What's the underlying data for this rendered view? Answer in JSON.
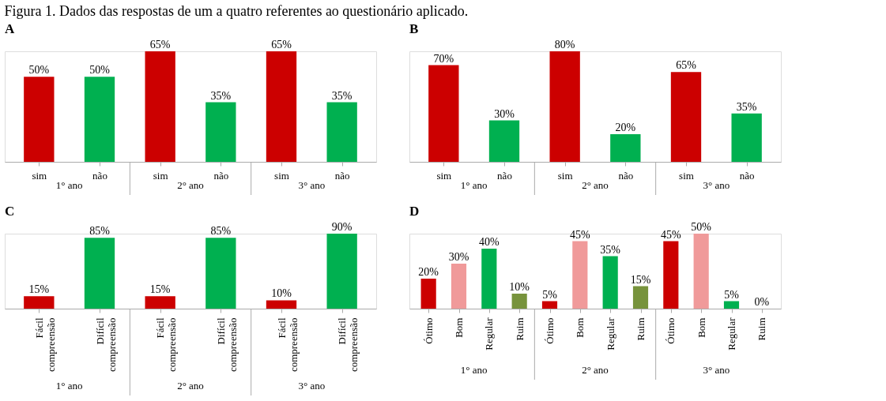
{
  "chart_data": [
    {
      "type": "bar",
      "title": "A",
      "categories": [
        "sim",
        "não",
        "sim",
        "não",
        "sim",
        "não"
      ],
      "values": [
        50,
        50,
        65,
        35,
        65,
        35
      ],
      "value_labels": [
        "50%",
        "50%",
        "65%",
        "35%",
        "65%",
        "35%"
      ],
      "colors": [
        "#cc0000",
        "#00b050",
        "#cc0000",
        "#00b050",
        "#cc0000",
        "#00b050"
      ],
      "annotations": [
        "Figura 1. Dados das respostas de um a quatro referentes ao questionário aplicado.",
        "1° ano",
        "2° ano",
        "3° ano"
      ]
    },
    {
      "type": "bar",
      "title": "B",
      "categories": [
        "sim",
        "não",
        "sim",
        "não",
        "sim",
        "não"
      ],
      "values": [
        70,
        30,
        80,
        20,
        65,
        35
      ],
      "value_labels": [
        "70%",
        "30%",
        "80%",
        "20%",
        "65%",
        "35%"
      ],
      "colors": [
        "#cc0000",
        "#00b050",
        "#cc0000",
        "#00b050",
        "#cc0000",
        "#00b050"
      ],
      "annotations": [
        "1° ano",
        "2° ano",
        "3° ano"
      ]
    },
    {
      "type": "bar",
      "title": "C",
      "categories": [
        "Fácil compreensão",
        "Difícil compreensão",
        "Fácil compreensão",
        "Difícil compreensão",
        "Fácil compreensão",
        "Difícil compreensão"
      ],
      "values": [
        15,
        85,
        15,
        85,
        10,
        90
      ],
      "value_labels": [
        "15%",
        "85%",
        "15%",
        "85%",
        "10%",
        "90%"
      ],
      "colors": [
        "#cc0000",
        "#00b050",
        "#cc0000",
        "#00b050",
        "#cc0000",
        "#00b050"
      ],
      "annotations": [
        "1° ano",
        "2° ano",
        "3° ano"
      ]
    },
    {
      "type": "bar",
      "title": "D",
      "categories": [
        "Ótimo",
        "Bom",
        "Regular",
        "Ruim",
        "Ótimo",
        "Bom",
        "Regular",
        "Ruim",
        "Ótimo",
        "Bom",
        "Regular",
        "Ruim"
      ],
      "values": [
        20,
        30,
        40,
        10,
        5,
        45,
        35,
        15,
        45,
        50,
        5,
        0
      ],
      "value_labels": [
        "20%",
        "30%",
        "40%",
        "10%",
        "5%",
        "45%",
        "35%",
        "15%",
        "45%",
        "50%",
        "5%",
        "0%"
      ],
      "colors": [
        "#cc0000",
        "#f09a9a",
        "#00b050",
        "#77933c",
        "#cc0000",
        "#f09a9a",
        "#00b050",
        "#77933c",
        "#cc0000",
        "#f09a9a",
        "#00b050",
        "#77933c"
      ],
      "annotations": [
        "1° ano",
        "2° ano",
        "3° ano"
      ]
    }
  ]
}
